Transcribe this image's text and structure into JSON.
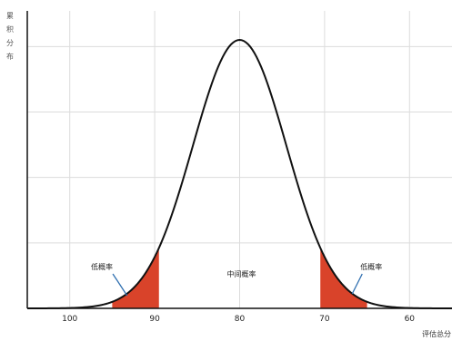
{
  "chart_data": {
    "type": "area",
    "title": "",
    "ylabel": "累积分布",
    "xlabel": "评估总分",
    "x_axis": {
      "reversed": true,
      "xlim": [
        105,
        55
      ],
      "ticks": [
        "100",
        "90",
        "80",
        "70",
        "60"
      ]
    },
    "grid": true,
    "distribution": {
      "kind": "normal",
      "mean": 80,
      "sd": 5.5
    },
    "shaded_regions": [
      {
        "from": 95,
        "to": 89.5,
        "color": "#d9432a"
      },
      {
        "from": 70.5,
        "to": 65,
        "color": "#d9432a"
      }
    ],
    "annotations": [
      {
        "text": "低概率",
        "region": "left-tail"
      },
      {
        "text": "中间概率",
        "region": "center"
      },
      {
        "text": "低概率",
        "region": "right-tail"
      }
    ],
    "colors": {
      "curve": "#111111",
      "tail_fill": "#d9432a",
      "pointer": "#2f6fb0",
      "grid": "#dcdcdc"
    }
  }
}
